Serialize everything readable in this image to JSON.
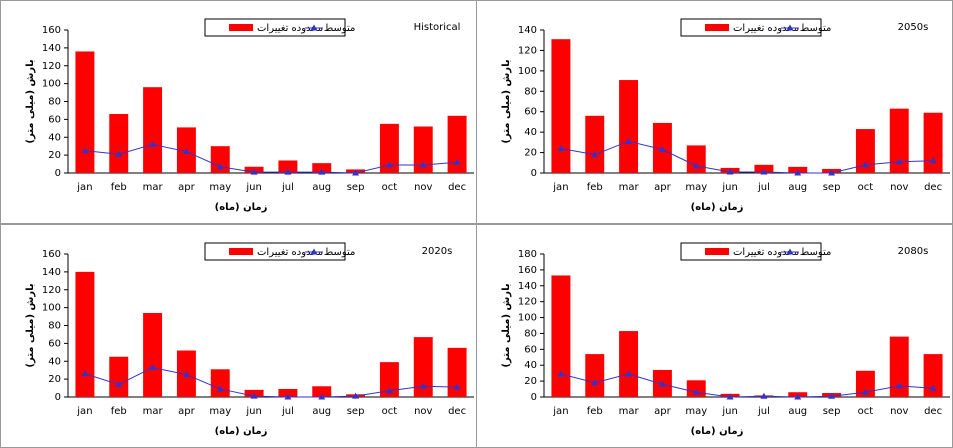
{
  "chart_data": [
    {
      "type": "combo",
      "title": "Historical",
      "xlabel": "زمان (ماه)",
      "ylabel": "بارش (میلی متر)",
      "categories": [
        "jan",
        "feb",
        "mar",
        "apr",
        "may",
        "jun",
        "jul",
        "aug",
        "sep",
        "oct",
        "nov",
        "dec"
      ],
      "series": [
        {
          "name": "محدوده تغییرات",
          "color": "#ff0000",
          "kind": "bar",
          "values": [
            136,
            66,
            96,
            51,
            30,
            7,
            14,
            11,
            4,
            55,
            52,
            64
          ]
        },
        {
          "name": "متوسط",
          "color": "#3333cc",
          "kind": "line",
          "values": [
            25,
            21,
            32,
            24,
            7,
            1,
            1,
            1,
            0,
            9,
            9,
            12
          ]
        }
      ],
      "ylim": [
        0,
        160
      ],
      "yticks": [
        0,
        20,
        40,
        60,
        80,
        100,
        120,
        140,
        160
      ]
    },
    {
      "type": "combo",
      "title": "2050s",
      "xlabel": "زمان (ماه)",
      "ylabel": "بارش (میلی متر)",
      "categories": [
        "jan",
        "feb",
        "mar",
        "apr",
        "may",
        "jun",
        "jul",
        "aug",
        "sep",
        "oct",
        "nov",
        "dec"
      ],
      "series": [
        {
          "name": "محدوده تغییرات",
          "color": "#ff0000",
          "kind": "bar",
          "values": [
            131,
            56,
            91,
            49,
            27,
            5,
            8,
            6,
            4,
            43,
            63,
            59
          ]
        },
        {
          "name": "متوسط",
          "color": "#3333cc",
          "kind": "line",
          "values": [
            24,
            18,
            31,
            23,
            7,
            1,
            1,
            0,
            0,
            8,
            11,
            12
          ]
        }
      ],
      "ylim": [
        0,
        140
      ],
      "yticks": [
        0,
        20,
        40,
        60,
        80,
        100,
        120,
        140
      ]
    },
    {
      "type": "combo",
      "title": "2020s",
      "xlabel": "زمان (ماه)",
      "ylabel": "بارش (میلی متر)",
      "categories": [
        "jan",
        "feb",
        "mar",
        "apr",
        "may",
        "jun",
        "jul",
        "aug",
        "sep",
        "oct",
        "nov",
        "dec"
      ],
      "series": [
        {
          "name": "محدوده تغییرات",
          "color": "#ff0000",
          "kind": "bar",
          "values": [
            140,
            45,
            94,
            52,
            31,
            8,
            9,
            12,
            3,
            39,
            67,
            55
          ]
        },
        {
          "name": "متوسط",
          "color": "#3333cc",
          "kind": "line",
          "values": [
            26,
            14,
            33,
            25,
            9,
            1,
            0,
            0,
            1,
            7,
            12,
            11
          ]
        }
      ],
      "ylim": [
        0,
        160
      ],
      "yticks": [
        0,
        20,
        40,
        60,
        80,
        100,
        120,
        140,
        160
      ]
    },
    {
      "type": "combo",
      "title": "2080s",
      "xlabel": "زمان (ماه)",
      "ylabel": "بارش (میلی متر)",
      "categories": [
        "jan",
        "feb",
        "mar",
        "apr",
        "may",
        "jun",
        "jul",
        "aug",
        "sep",
        "oct",
        "nov",
        "dec"
      ],
      "series": [
        {
          "name": "محدوده تغییرات",
          "color": "#ff0000",
          "kind": "bar",
          "values": [
            153,
            54,
            83,
            34,
            21,
            4,
            2,
            6,
            5,
            33,
            76,
            54
          ]
        },
        {
          "name": "متوسط",
          "color": "#3333cc",
          "kind": "line",
          "values": [
            29,
            18,
            29,
            16,
            6,
            0,
            1,
            0,
            1,
            6,
            14,
            11
          ]
        }
      ],
      "ylim": [
        0,
        180
      ],
      "yticks": [
        0,
        20,
        40,
        60,
        80,
        100,
        120,
        140,
        160,
        180
      ]
    }
  ]
}
